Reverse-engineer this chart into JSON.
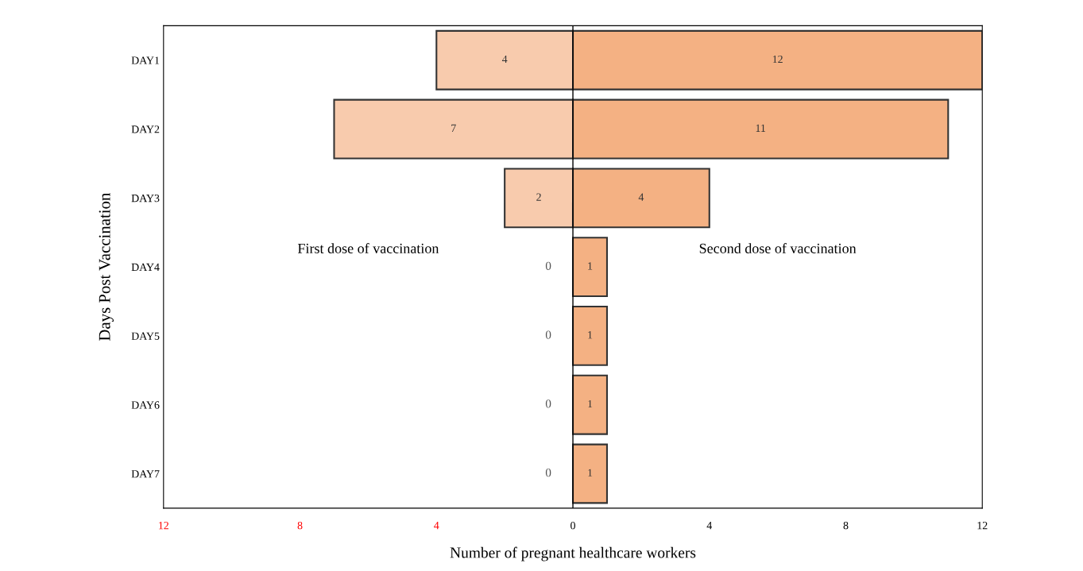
{
  "chart_data": {
    "type": "bar",
    "orientation": "horizontal",
    "xlabel": "Number of pregnant healthcare workers",
    "ylabel": "Days Post Vaccination",
    "categories": [
      "DAY1",
      "DAY2",
      "DAY3",
      "DAY4",
      "DAY5",
      "DAY6",
      "DAY7"
    ],
    "series": [
      {
        "color": "#f8cbad",
        "values": [
          4,
          7,
          2,
          0,
          0,
          0,
          0
        ],
        "base": [
          -4,
          -7,
          -2,
          null,
          null,
          null,
          null
        ],
        "value_labels": [
          "4",
          "7",
          "2",
          "0",
          "0",
          "0",
          "0"
        ]
      },
      {
        "color": "#f4b183",
        "values": [
          12,
          11,
          4,
          1,
          1,
          1,
          1
        ],
        "value_labels": [
          "12",
          "11",
          "4",
          "1",
          "1",
          "1",
          "1"
        ]
      }
    ],
    "annotations": [
      "First dose of vaccination",
      "Second dose of vaccination"
    ],
    "ref_lines": [
      {
        "axis": "x",
        "value": 0,
        "color": "#000000"
      }
    ],
    "xlim": [
      -12,
      12
    ],
    "xticks": [
      {
        "value": -12,
        "label": "12"
      },
      {
        "value": -8,
        "label": "8"
      },
      {
        "value": -4,
        "label": "4"
      },
      0,
      4,
      8,
      12
    ],
    "grid": false,
    "legend": false
  }
}
